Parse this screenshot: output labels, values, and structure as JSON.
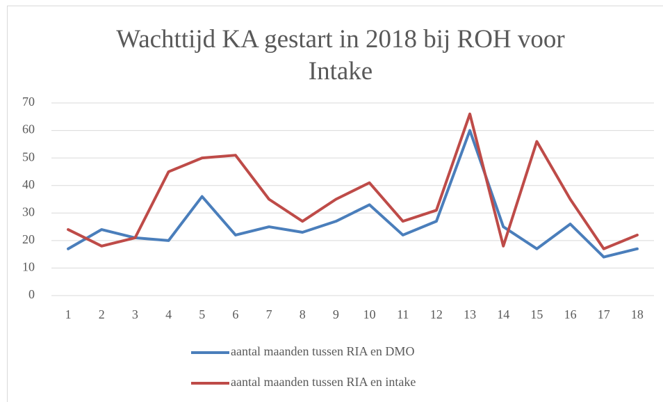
{
  "chart_data": {
    "type": "line",
    "title": "Wachttijd KA gestart in 2018 bij ROH voor Intake",
    "categories": [
      "1",
      "2",
      "3",
      "4",
      "5",
      "6",
      "7",
      "8",
      "9",
      "10",
      "11",
      "12",
      "13",
      "14",
      "15",
      "16",
      "17",
      "18"
    ],
    "series": [
      {
        "name": "aantal maanden tussen RIA en DMO",
        "color": "#4a7ebb",
        "values": [
          17,
          24,
          21,
          20,
          36,
          22,
          25,
          23,
          27,
          33,
          22,
          27,
          60,
          25,
          17,
          26,
          14,
          17
        ]
      },
      {
        "name": "aantal maanden tussen RIA en intake",
        "color": "#be4b48",
        "values": [
          24,
          18,
          21,
          45,
          50,
          51,
          35,
          27,
          35,
          41,
          27,
          31,
          66,
          18,
          56,
          35,
          17,
          22
        ]
      }
    ],
    "ylim": [
      0,
      70
    ],
    "yticks": [
      0,
      10,
      20,
      30,
      40,
      50,
      60,
      70
    ],
    "grid": true,
    "legend": "bottom"
  }
}
